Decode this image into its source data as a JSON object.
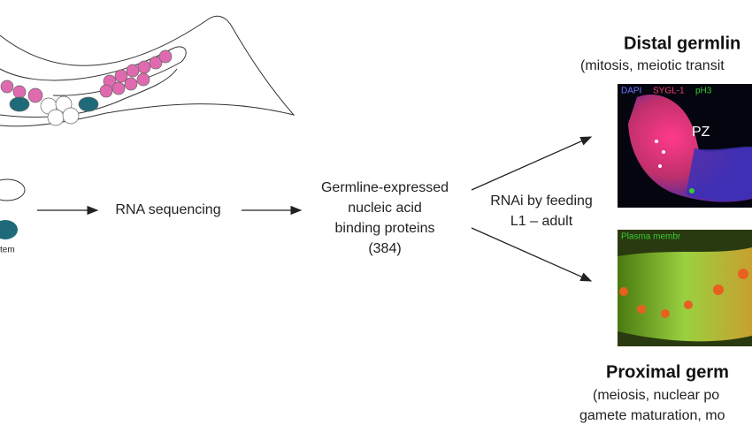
{
  "left": {
    "caption": "tem"
  },
  "step1": "RNA sequencing",
  "middle": {
    "lines": [
      "Germline-expressed",
      "nucleic acid",
      "binding proteins",
      "(384)"
    ]
  },
  "treatment": {
    "lines": [
      "RNAi by feeding",
      "L1 – adult"
    ]
  },
  "distal": {
    "title": "Distal germlin",
    "subtitle": "(mitosis, meiotic transit",
    "stains": [
      "DAPI",
      "SYGL-1",
      "pH3"
    ],
    "zone": "PZ"
  },
  "proximal": {
    "title": "Proximal germ",
    "lines": [
      "(meiosis, nuclear po",
      "gamete maturation, mo"
    ],
    "stains": [
      "Plasma membr"
    ]
  }
}
